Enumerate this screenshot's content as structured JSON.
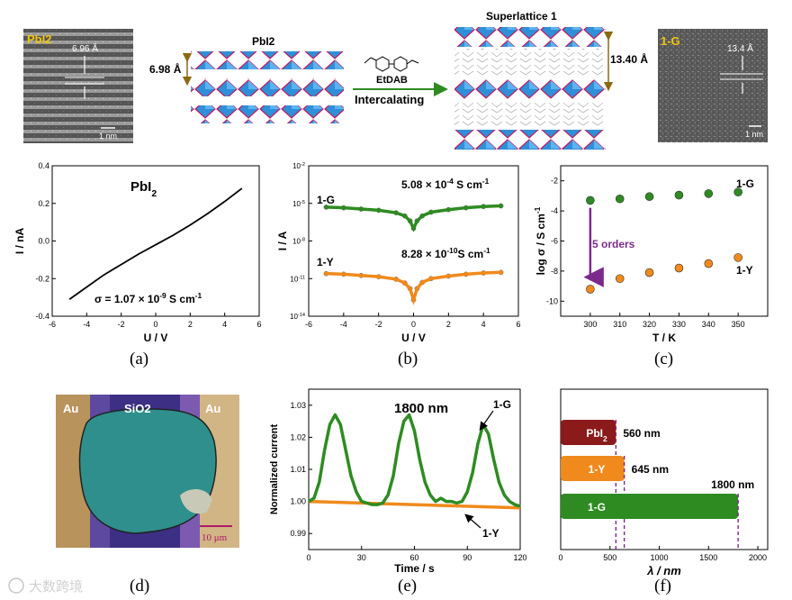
{
  "panel_letters": [
    "(a)",
    "(b)",
    "(c)",
    "(d)",
    "(e)",
    "(f)"
  ],
  "top": {
    "tem_left_label": "PbI2",
    "tem_left_spacing": "6.96 Å",
    "tem_left_scale": "1 nm",
    "pbi2_title": "PbI2",
    "pbi2_spacing": "6.98 Å",
    "molecule_label": "EtDAB",
    "arrow_label": "Intercalating",
    "superlattice_title": "Superlattice 1",
    "superlattice_spacing": "13.40 Å",
    "tem_right_label": "1-G",
    "tem_right_spacing": "13.4 Å",
    "tem_right_scale": "1 nm"
  },
  "micrograph": {
    "left_label": "Au",
    "center_label": "SiO2",
    "right_label": "Au",
    "scale_label": "10 μm"
  },
  "watermark": "大数跨境",
  "colors": {
    "green": "#2e8b22",
    "orange": "#f08a1c",
    "purple": "#7b2a8c",
    "darkred": "#8b1a1a",
    "octa": "#2f8fd8",
    "octa_edge": "#c2185b"
  },
  "chart_data": [
    {
      "id": "a",
      "type": "line",
      "title": "PbI2",
      "xlabel": "U / V",
      "ylabel": "I / nA",
      "xlim": [
        -6,
        6
      ],
      "ylim": [
        -0.4,
        0.4
      ],
      "xticks": [
        -6,
        -4,
        -2,
        0,
        2,
        4,
        6
      ],
      "yticks": [
        -0.4,
        -0.2,
        0.0,
        0.2,
        0.4
      ],
      "annotation": "σ = 1.07 × 10-9 S cm-1",
      "series": [
        {
          "name": "PbI2",
          "x": [
            -5,
            -4,
            -3,
            -2,
            -1,
            0,
            1,
            2,
            3,
            4,
            5
          ],
          "y": [
            -0.31,
            -0.245,
            -0.18,
            -0.125,
            -0.07,
            -0.02,
            0.03,
            0.085,
            0.145,
            0.21,
            0.28
          ]
        }
      ]
    },
    {
      "id": "b",
      "type": "scatter",
      "xlabel": "U / V",
      "ylabel": "I / A",
      "yscale": "log",
      "xlim": [
        -6,
        6
      ],
      "ylim_exp": [
        -14,
        -2
      ],
      "xticks": [
        -6,
        -4,
        -2,
        0,
        2,
        4,
        6
      ],
      "yticks_exp": [
        -14,
        -11,
        -8,
        -5,
        -2
      ],
      "series": [
        {
          "name": "1-G",
          "conductivity": "5.08 × 10-4 S cm-1",
          "label_left": "1-G",
          "x": [
            -5,
            -4,
            -3,
            -2,
            -1,
            -0.5,
            -0.2,
            0,
            0.2,
            0.5,
            1,
            2,
            3,
            4,
            5
          ],
          "log_y": [
            -5.3,
            -5.35,
            -5.45,
            -5.55,
            -5.75,
            -6.0,
            -6.4,
            -7.0,
            -6.4,
            -6.0,
            -5.7,
            -5.5,
            -5.35,
            -5.25,
            -5.2
          ]
        },
        {
          "name": "1-Y",
          "conductivity": "8.28 × 10-10S cm-1",
          "label_left": "1-Y",
          "x": [
            -5,
            -4,
            -3,
            -2,
            -1,
            -0.5,
            -0.2,
            0,
            0.2,
            0.5,
            1,
            2,
            3,
            4,
            5
          ],
          "log_y": [
            -10.6,
            -10.65,
            -10.75,
            -10.85,
            -11.05,
            -11.35,
            -11.8,
            -12.7,
            -11.8,
            -11.3,
            -11.0,
            -10.8,
            -10.65,
            -10.55,
            -10.5
          ]
        }
      ]
    },
    {
      "id": "c",
      "type": "scatter",
      "xlabel": "T / K",
      "ylabel": "log σ / S cm-1",
      "xlim": [
        290,
        360
      ],
      "ylim": [
        -11,
        -1
      ],
      "xticks": [
        300,
        310,
        320,
        330,
        340,
        350
      ],
      "yticks": [
        -10,
        -8,
        -6,
        -4,
        -2
      ],
      "annotation": "5 orders",
      "series": [
        {
          "name": "1-G",
          "x": [
            300,
            310,
            320,
            330,
            340,
            350
          ],
          "y": [
            -3.3,
            -3.2,
            -3.05,
            -2.95,
            -2.85,
            -2.75
          ]
        },
        {
          "name": "1-Y",
          "x": [
            300,
            310,
            320,
            330,
            340,
            350
          ],
          "y": [
            -9.2,
            -8.5,
            -8.1,
            -7.8,
            -7.5,
            -7.1
          ]
        }
      ]
    },
    {
      "id": "e",
      "type": "line",
      "title": "1800 nm",
      "xlabel": "Time / s",
      "ylabel": "Normalized current",
      "xlim": [
        0,
        120
      ],
      "ylim": [
        0.985,
        1.035
      ],
      "xticks": [
        0,
        30,
        60,
        90,
        120
      ],
      "yticks": [
        0.99,
        1.0,
        1.01,
        1.02,
        1.03
      ],
      "series": [
        {
          "name": "1-G",
          "x": [
            0,
            3,
            6,
            9,
            12,
            15,
            18,
            21,
            24,
            27,
            30,
            33,
            36,
            39,
            42,
            45,
            48,
            51,
            54,
            57,
            60,
            63,
            66,
            69,
            72,
            75,
            78,
            81,
            84,
            87,
            90,
            93,
            96,
            99,
            102,
            105,
            108,
            111,
            114,
            117,
            120
          ],
          "y": [
            1.0,
            1.001,
            1.006,
            1.016,
            1.024,
            1.027,
            1.024,
            1.016,
            1.008,
            1.003,
            1.0,
            0.9995,
            0.999,
            0.999,
            0.9995,
            1.002,
            1.008,
            1.018,
            1.025,
            1.027,
            1.022,
            1.013,
            1.006,
            1.002,
            1.0,
            1.001,
            1.0,
            1.0,
            0.9995,
            1.0,
            1.003,
            1.009,
            1.018,
            1.024,
            1.021,
            1.013,
            1.006,
            1.002,
            1.0,
            0.999,
            0.9985
          ]
        },
        {
          "name": "1-Y",
          "x": [
            0,
            120
          ],
          "y": [
            1.0,
            0.998
          ]
        }
      ]
    },
    {
      "id": "f",
      "type": "bar",
      "orientation": "horizontal",
      "xlabel": "λ / nm",
      "xlim": [
        0,
        2100
      ],
      "xticks": [
        0,
        500,
        1000,
        1500,
        2000
      ],
      "categories": [
        "PbI2",
        "1-Y",
        "1-G"
      ],
      "values": [
        560,
        645,
        1800
      ],
      "value_labels": [
        "560 nm",
        "645 nm",
        "1800 nm"
      ]
    }
  ]
}
